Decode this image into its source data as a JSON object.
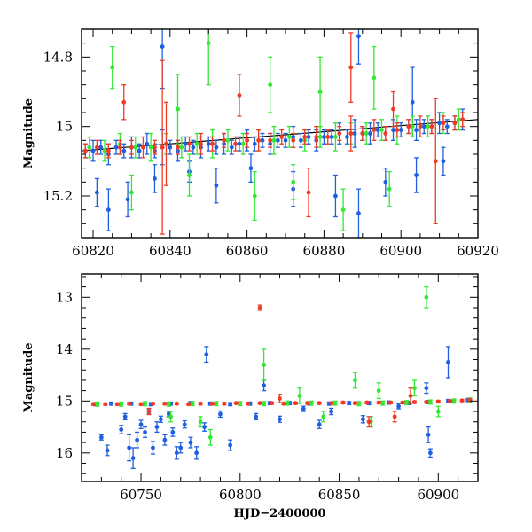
{
  "chart_data": [
    {
      "type": "scatter",
      "title": "",
      "xlabel": "",
      "ylabel": "Magnitude",
      "xlim": [
        60817,
        60920
      ],
      "ylim": [
        15.32,
        14.72
      ],
      "y_inverted": true,
      "grid": false,
      "x_ticks": [
        60820,
        60840,
        60860,
        60880,
        60900,
        60920
      ],
      "y_ticks": [
        14.8,
        15,
        15.2
      ],
      "trend_line": {
        "x": [
          60817,
          60920
        ],
        "y": [
          15.07,
          14.98
        ],
        "color": "#000000"
      },
      "series": [
        {
          "color": "#1f5fe0",
          "x": [
            60818,
            60820,
            60822,
            60824,
            60826,
            60828,
            60830,
            60832,
            60834,
            60836,
            60838,
            60840,
            60842,
            60844,
            60846,
            60848,
            60850,
            60852,
            60854,
            60856,
            60858,
            60860,
            60862,
            60864,
            60866,
            60868,
            60870,
            60872,
            60874,
            60876,
            60878,
            60880,
            60882,
            60884,
            60886,
            60888,
            60890,
            60892,
            60894,
            60896,
            60898,
            60900,
            60902,
            60904,
            60906,
            60908,
            60910,
            60912,
            60914,
            60916,
            60821,
            60829,
            60836,
            60845,
            60852,
            60861,
            60872,
            60883,
            60889,
            60896,
            60904,
            60911,
            60824,
            60838,
            60889,
            60903
          ],
          "y": [
            15.07,
            15.07,
            15.06,
            15.08,
            15.06,
            15.07,
            15.06,
            15.07,
            15.05,
            15.07,
            15.06,
            15.06,
            15.07,
            15.05,
            15.06,
            15.06,
            15.05,
            15.06,
            15.05,
            15.06,
            15.05,
            15.04,
            15.05,
            15.04,
            15.05,
            15.04,
            15.04,
            15.03,
            15.04,
            15.03,
            15.04,
            15.03,
            15.03,
            15.02,
            15.03,
            15.02,
            15.02,
            15.02,
            15.01,
            15.02,
            15.01,
            15.01,
            15.0,
            15.01,
            15.0,
            15.0,
            14.99,
            15.0,
            14.99,
            14.98,
            15.19,
            15.21,
            15.15,
            15.13,
            15.17,
            15.12,
            15.18,
            15.2,
            15.25,
            15.16,
            15.14,
            15.1,
            15.24,
            14.77,
            14.74,
            14.93
          ],
          "err": [
            0.02,
            0.03,
            0.02,
            0.03,
            0.02,
            0.02,
            0.03,
            0.02,
            0.03,
            0.02,
            0.05,
            0.02,
            0.03,
            0.02,
            0.02,
            0.03,
            0.02,
            0.02,
            0.03,
            0.02,
            0.02,
            0.03,
            0.02,
            0.02,
            0.03,
            0.02,
            0.02,
            0.03,
            0.02,
            0.02,
            0.03,
            0.02,
            0.02,
            0.03,
            0.02,
            0.04,
            0.02,
            0.03,
            0.02,
            0.02,
            0.03,
            0.02,
            0.02,
            0.03,
            0.02,
            0.02,
            0.03,
            0.02,
            0.02,
            0.03,
            0.04,
            0.05,
            0.04,
            0.03,
            0.05,
            0.04,
            0.05,
            0.06,
            0.07,
            0.04,
            0.05,
            0.04,
            0.06,
            0.12,
            0.08,
            0.1
          ]
        },
        {
          "color": "#33e833",
          "x": [
            60819,
            60823,
            60827,
            60831,
            60835,
            60839,
            60843,
            60847,
            60851,
            60855,
            60859,
            60863,
            60867,
            60871,
            60875,
            60879,
            60883,
            60887,
            60891,
            60895,
            60899,
            60903,
            60907,
            60911,
            60915,
            60825,
            60842,
            60850,
            60866,
            60879,
            60893,
            60830,
            60845,
            60862,
            60872,
            60885,
            60897
          ],
          "y": [
            15.06,
            15.07,
            15.05,
            15.06,
            15.06,
            15.05,
            15.06,
            15.05,
            15.05,
            15.04,
            15.05,
            15.04,
            15.04,
            15.03,
            15.04,
            15.03,
            15.03,
            15.02,
            15.02,
            15.01,
            15.01,
            15.0,
            15.0,
            14.99,
            14.98,
            14.83,
            14.95,
            14.76,
            14.88,
            14.9,
            14.86,
            15.19,
            15.14,
            15.2,
            15.16,
            15.24,
            15.18
          ],
          "err": [
            0.03,
            0.03,
            0.03,
            0.03,
            0.04,
            0.03,
            0.03,
            0.03,
            0.04,
            0.03,
            0.03,
            0.03,
            0.04,
            0.03,
            0.03,
            0.03,
            0.04,
            0.03,
            0.03,
            0.03,
            0.04,
            0.03,
            0.03,
            0.03,
            0.03,
            0.06,
            0.1,
            0.12,
            0.08,
            0.1,
            0.09,
            0.05,
            0.06,
            0.07,
            0.05,
            0.06,
            0.05
          ]
        },
        {
          "color": "#f03a26",
          "x": [
            60818,
            60821,
            60824,
            60827,
            60830,
            60833,
            60836,
            60839,
            60842,
            60845,
            60848,
            60851,
            60854,
            60857,
            60860,
            60863,
            60866,
            60869,
            60872,
            60875,
            60878,
            60881,
            60884,
            60887,
            60890,
            60893,
            60896,
            60899,
            60902,
            60905,
            60908,
            60911,
            60914,
            60916,
            60828,
            60838,
            60858,
            60876,
            60887,
            60898,
            60909
          ],
          "y": [
            15.07,
            15.06,
            15.07,
            15.06,
            15.06,
            15.06,
            15.06,
            15.05,
            15.06,
            15.05,
            15.05,
            15.05,
            15.04,
            15.05,
            15.04,
            15.04,
            15.04,
            15.03,
            15.04,
            15.03,
            15.03,
            15.03,
            15.02,
            15.02,
            15.02,
            15.01,
            15.02,
            15.01,
            15.0,
            15.0,
            15.0,
            14.99,
            14.99,
            14.98,
            14.93,
            15.06,
            14.91,
            15.19,
            14.83,
            14.95,
            15.1
          ],
          "err": [
            0.02,
            0.02,
            0.02,
            0.02,
            0.02,
            0.03,
            0.02,
            0.12,
            0.02,
            0.02,
            0.03,
            0.02,
            0.02,
            0.02,
            0.02,
            0.03,
            0.02,
            0.02,
            0.02,
            0.02,
            0.03,
            0.02,
            0.02,
            0.05,
            0.02,
            0.03,
            0.02,
            0.02,
            0.02,
            0.03,
            0.02,
            0.02,
            0.02,
            0.02,
            0.05,
            0.25,
            0.06,
            0.07,
            0.1,
            0.05,
            0.18
          ]
        }
      ]
    },
    {
      "type": "scatter",
      "title": "",
      "xlabel": "HJD−2400000",
      "ylabel": "Magnitude",
      "xlim": [
        60720,
        60920
      ],
      "ylim": [
        16.55,
        12.55
      ],
      "y_inverted": true,
      "grid": false,
      "x_ticks": [
        60750,
        60800,
        60850,
        60900
      ],
      "y_ticks": [
        13,
        14,
        15,
        16
      ],
      "series": [
        {
          "color": "#1f5fe0",
          "x": [
            60727,
            60735,
            60745,
            60755,
            60765,
            60775,
            60785,
            60795,
            60805,
            60815,
            60825,
            60835,
            60845,
            60855,
            60865,
            60875,
            60885,
            60895,
            60905,
            60915,
            60730,
            60733,
            60740,
            60742,
            60744,
            60746,
            60748,
            60750,
            60752,
            60754,
            60756,
            60758,
            60760,
            60762,
            60764,
            60766,
            60768,
            60770,
            60772,
            60775,
            60778,
            60782,
            60783,
            60790,
            60795,
            60808,
            60812,
            60820,
            60832,
            60840,
            60846,
            60862,
            60880,
            60894,
            60895,
            60896,
            60905
          ],
          "y": [
            15.06,
            15.05,
            15.05,
            15.06,
            15.05,
            15.04,
            15.05,
            15.06,
            15.05,
            15.04,
            15.04,
            15.05,
            15.05,
            15.04,
            15.04,
            15.03,
            15.04,
            15.02,
            15.0,
            14.98,
            15.7,
            15.95,
            15.55,
            15.3,
            15.9,
            16.1,
            15.75,
            15.45,
            15.6,
            15.2,
            15.9,
            15.5,
            15.35,
            15.75,
            15.25,
            15.6,
            16.0,
            15.9,
            15.45,
            15.8,
            16.0,
            15.5,
            14.1,
            15.25,
            15.85,
            15.3,
            14.7,
            15.35,
            15.15,
            15.45,
            15.2,
            15.35,
            15.1,
            14.75,
            15.65,
            16.0,
            14.25
          ],
          "err": [
            0.03,
            0.03,
            0.03,
            0.03,
            0.03,
            0.03,
            0.03,
            0.03,
            0.03,
            0.03,
            0.03,
            0.03,
            0.03,
            0.03,
            0.03,
            0.03,
            0.03,
            0.03,
            0.03,
            0.03,
            0.05,
            0.1,
            0.08,
            0.06,
            0.25,
            0.2,
            0.15,
            0.08,
            0.1,
            0.05,
            0.12,
            0.1,
            0.06,
            0.1,
            0.05,
            0.08,
            0.12,
            0.1,
            0.07,
            0.1,
            0.12,
            0.08,
            0.15,
            0.06,
            0.1,
            0.06,
            0.1,
            0.06,
            0.05,
            0.08,
            0.06,
            0.07,
            0.05,
            0.1,
            0.15,
            0.08,
            0.3
          ]
        },
        {
          "color": "#33e833",
          "x": [
            60728,
            60740,
            60752,
            60764,
            60776,
            60788,
            60800,
            60812,
            60824,
            60836,
            60848,
            60860,
            60872,
            60884,
            60896,
            60908,
            60916,
            60785,
            60812,
            60830,
            60858,
            60870,
            60888,
            60894,
            60765,
            60780,
            60842,
            60866,
            60900
          ],
          "y": [
            15.06,
            15.06,
            15.05,
            15.06,
            15.05,
            15.05,
            15.05,
            15.05,
            15.04,
            15.04,
            15.04,
            15.05,
            15.04,
            15.03,
            15.02,
            15.0,
            14.98,
            15.7,
            14.3,
            14.9,
            14.6,
            14.8,
            14.75,
            13.0,
            15.3,
            15.4,
            15.3,
            15.4,
            15.2
          ],
          "err": [
            0.04,
            0.04,
            0.04,
            0.04,
            0.04,
            0.04,
            0.04,
            0.04,
            0.04,
            0.04,
            0.04,
            0.04,
            0.04,
            0.04,
            0.04,
            0.04,
            0.04,
            0.15,
            0.3,
            0.15,
            0.15,
            0.15,
            0.15,
            0.2,
            0.1,
            0.1,
            0.1,
            0.1,
            0.1
          ]
        },
        {
          "color": "#f03a26",
          "x": [
            60726,
            60732,
            60738,
            60744,
            60750,
            60756,
            60762,
            60768,
            60774,
            60780,
            60786,
            60792,
            60798,
            60804,
            60810,
            60816,
            60822,
            60828,
            60834,
            60840,
            60846,
            60852,
            60858,
            60864,
            60870,
            60876,
            60882,
            60888,
            60894,
            60900,
            60906,
            60912,
            60916,
            60810,
            60865,
            60886,
            60754,
            60820,
            60878
          ],
          "y": [
            15.06,
            15.06,
            15.06,
            15.05,
            15.06,
            15.05,
            15.05,
            15.05,
            15.06,
            15.05,
            15.05,
            15.05,
            15.04,
            15.05,
            15.04,
            15.04,
            15.05,
            15.04,
            15.04,
            15.04,
            15.04,
            15.03,
            15.04,
            15.03,
            15.03,
            15.03,
            15.03,
            15.02,
            15.02,
            15.01,
            15.0,
            14.99,
            14.98,
            13.2,
            15.4,
            14.9,
            15.2,
            14.95,
            15.3
          ],
          "err": [
            0.02,
            0.02,
            0.02,
            0.02,
            0.02,
            0.02,
            0.02,
            0.02,
            0.02,
            0.02,
            0.02,
            0.02,
            0.02,
            0.02,
            0.02,
            0.02,
            0.02,
            0.02,
            0.02,
            0.02,
            0.02,
            0.02,
            0.02,
            0.02,
            0.02,
            0.02,
            0.02,
            0.02,
            0.02,
            0.02,
            0.02,
            0.02,
            0.02,
            0.05,
            0.1,
            0.15,
            0.06,
            0.08,
            0.1
          ]
        }
      ]
    }
  ]
}
